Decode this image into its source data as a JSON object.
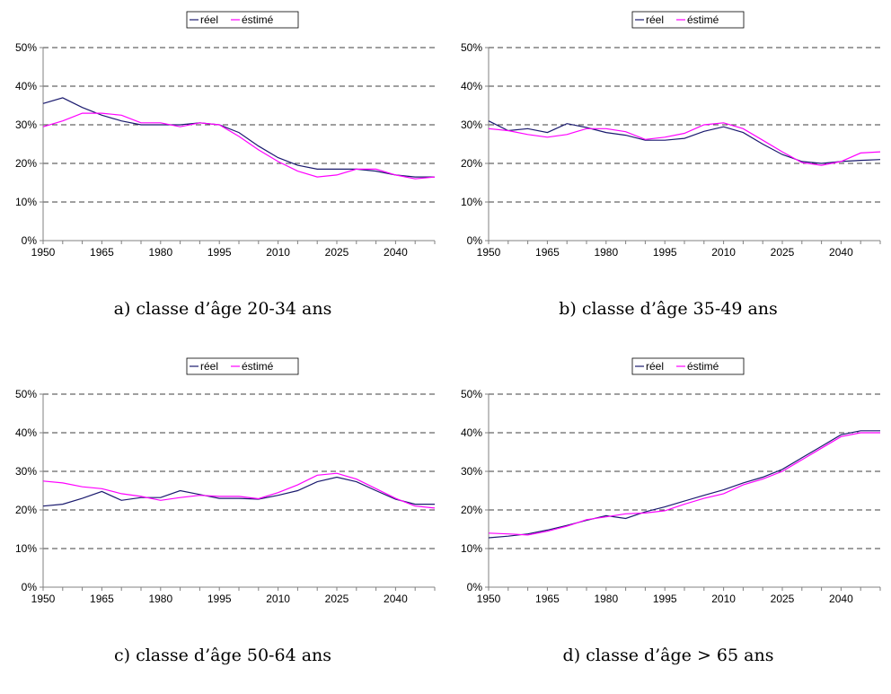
{
  "legend": {
    "actual": "réel",
    "estimated": "éstimé"
  },
  "colors": {
    "actual": "#1a1a6e",
    "estimated": "#ff00ff",
    "grid": "#000000",
    "axis": "#808080"
  },
  "captions": [
    "a) classe d’âge 20-34 ans",
    "b) classe d’âge 35-49 ans",
    "c) classe d’âge 50-64 ans",
    "d) classe d’âge > 65 ans"
  ],
  "chart_data": [
    {
      "type": "line",
      "x": [
        1950,
        1955,
        1960,
        1965,
        1970,
        1975,
        1980,
        1985,
        1990,
        1995,
        2000,
        2005,
        2010,
        2015,
        2020,
        2025,
        2030,
        2035,
        2040,
        2045,
        2050
      ],
      "xticks": [
        "1950",
        "1965",
        "1980",
        "1995",
        "2010",
        "2025",
        "2040"
      ],
      "yticks": [
        "0%",
        "10%",
        "20%",
        "30%",
        "40%",
        "50%"
      ],
      "ylim": [
        0,
        50
      ],
      "grid": true,
      "legend_position": "top-center",
      "series": [
        {
          "name": "réel",
          "values": [
            35.5,
            37,
            34.5,
            32.5,
            31,
            30,
            30,
            30,
            30.5,
            30,
            28,
            24.5,
            21.5,
            19.5,
            18.5,
            18.5,
            18.5,
            18,
            17,
            16.5,
            16.5
          ]
        },
        {
          "name": "éstimé",
          "values": [
            29.5,
            31,
            33,
            33,
            32.5,
            30.5,
            30.5,
            29.5,
            30.5,
            30,
            27,
            23.5,
            20.5,
            18,
            16.5,
            17,
            18.5,
            18.5,
            17,
            16,
            16.5
          ]
        }
      ]
    },
    {
      "type": "line",
      "x": [
        1950,
        1955,
        1960,
        1965,
        1970,
        1975,
        1980,
        1985,
        1990,
        1995,
        2000,
        2005,
        2010,
        2015,
        2020,
        2025,
        2030,
        2035,
        2040,
        2045,
        2050
      ],
      "xticks": [
        "1950",
        "1965",
        "1980",
        "1995",
        "2010",
        "2025",
        "2040"
      ],
      "yticks": [
        "0%",
        "10%",
        "20%",
        "30%",
        "40%",
        "50%"
      ],
      "ylim": [
        0,
        50
      ],
      "grid": true,
      "legend_position": "top-center",
      "series": [
        {
          "name": "réel",
          "values": [
            31,
            28.5,
            29,
            28,
            30.3,
            29.3,
            28,
            27.3,
            26,
            26,
            26.5,
            28.3,
            29.5,
            28,
            25,
            22.3,
            20.5,
            20,
            20.5,
            20.8,
            21
          ]
        },
        {
          "name": "éstimé",
          "values": [
            29,
            28.5,
            27.5,
            26.8,
            27.5,
            29,
            29,
            28.2,
            26.2,
            26.8,
            27.8,
            30,
            30.5,
            29,
            26,
            23,
            20.2,
            19.5,
            20.5,
            22.7,
            23
          ]
        }
      ]
    },
    {
      "type": "line",
      "x": [
        1950,
        1955,
        1960,
        1965,
        1970,
        1975,
        1980,
        1985,
        1990,
        1995,
        2000,
        2005,
        2010,
        2015,
        2020,
        2025,
        2030,
        2035,
        2040,
        2045,
        2050
      ],
      "xticks": [
        "1950",
        "1965",
        "1980",
        "1995",
        "2010",
        "2025",
        "2040"
      ],
      "yticks": [
        "0%",
        "10%",
        "20%",
        "30%",
        "40%",
        "50%"
      ],
      "ylim": [
        0,
        50
      ],
      "grid": true,
      "legend_position": "top-center",
      "series": [
        {
          "name": "réel",
          "values": [
            21,
            21.5,
            23,
            24.8,
            22.5,
            23.2,
            23.2,
            25,
            24,
            23,
            23,
            22.8,
            23.8,
            25,
            27.3,
            28.5,
            27.3,
            25,
            22.8,
            21.5,
            21.5
          ]
        },
        {
          "name": "éstimé",
          "values": [
            27.5,
            27,
            26,
            25.5,
            24.2,
            23.5,
            22.5,
            23.2,
            23.8,
            23.5,
            23.5,
            22.9,
            24.5,
            26.5,
            29,
            29.5,
            28,
            25.5,
            23,
            21,
            20.5
          ]
        }
      ]
    },
    {
      "type": "line",
      "x": [
        1950,
        1955,
        1960,
        1965,
        1970,
        1975,
        1980,
        1985,
        1990,
        1995,
        2000,
        2005,
        2010,
        2015,
        2020,
        2025,
        2030,
        2035,
        2040,
        2045,
        2050
      ],
      "xticks": [
        "1950",
        "1965",
        "1980",
        "1995",
        "2010",
        "2025",
        "2040"
      ],
      "yticks": [
        "0%",
        "10%",
        "20%",
        "30%",
        "40%",
        "50%"
      ],
      "ylim": [
        0,
        50
      ],
      "grid": true,
      "legend_position": "top-center",
      "series": [
        {
          "name": "réel",
          "values": [
            12.8,
            13.2,
            13.8,
            14.8,
            16,
            17.3,
            18.5,
            17.8,
            19.5,
            20.8,
            22.3,
            23.8,
            25.2,
            27,
            28.5,
            30.5,
            33.5,
            36.5,
            39.5,
            40.5,
            40.5
          ]
        },
        {
          "name": "éstimé",
          "values": [
            14,
            13.8,
            13.5,
            14.5,
            15.8,
            17.5,
            18.2,
            19,
            19.2,
            19.8,
            21.5,
            23,
            24.2,
            26.5,
            28,
            30,
            33,
            36,
            39,
            40,
            40
          ]
        }
      ]
    }
  ]
}
